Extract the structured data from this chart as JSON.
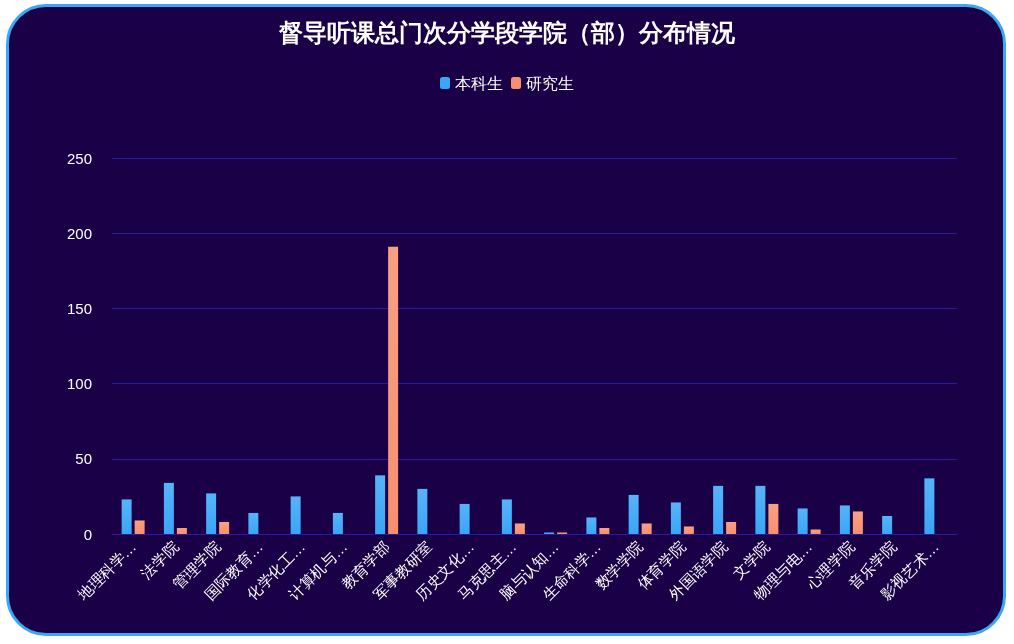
{
  "chart_data": {
    "type": "bar",
    "title": "督导听课总门次分学段学院（部）分布情况",
    "categories": [
      "地理科学…",
      "法学院",
      "管理学院",
      "国际教育…",
      "化学化工…",
      "计算机与…",
      "教育学部",
      "军事教研室",
      "历史文化…",
      "马克思主…",
      "脑与认知…",
      "生命科学…",
      "数学学院",
      "体育学院",
      "外国语学院",
      "文学院",
      "物理与电…",
      "心理学院",
      "音乐学院",
      "影视艺术…"
    ],
    "series": [
      {
        "name": "本科生",
        "color": "#3aa6f7",
        "values": [
          23,
          34,
          27,
          14,
          25,
          14,
          39,
          30,
          20,
          23,
          1,
          11,
          26,
          21,
          32,
          32,
          17,
          19,
          12,
          37
        ]
      },
      {
        "name": "研究生",
        "color": "#f7906f",
        "values": [
          9,
          4,
          8,
          null,
          null,
          null,
          191,
          null,
          null,
          7,
          1,
          4,
          7,
          5,
          8,
          20,
          3,
          15,
          null,
          null
        ]
      }
    ],
    "ylim": [
      0,
      250
    ],
    "yticks": [
      0,
      50,
      100,
      150,
      200,
      250
    ],
    "grid": "y",
    "legend": "top"
  }
}
